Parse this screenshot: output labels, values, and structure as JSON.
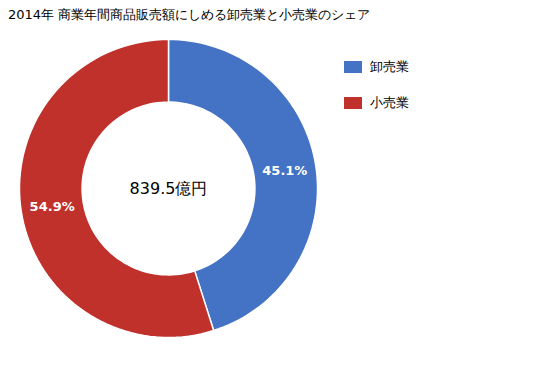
{
  "chart_data": {
    "type": "pie",
    "title": "2014年 商業年間商品販売額にしめる卸売業と小売業のシェア",
    "categories": [
      "卸売業",
      "小売業"
    ],
    "values": [
      45.1,
      54.9
    ],
    "value_labels": [
      "45.1%",
      "54.9%"
    ],
    "data_labels": true,
    "colors": [
      "#4472C4",
      "#C0312B"
    ],
    "annotation": "839.5億円",
    "legend": "right"
  }
}
